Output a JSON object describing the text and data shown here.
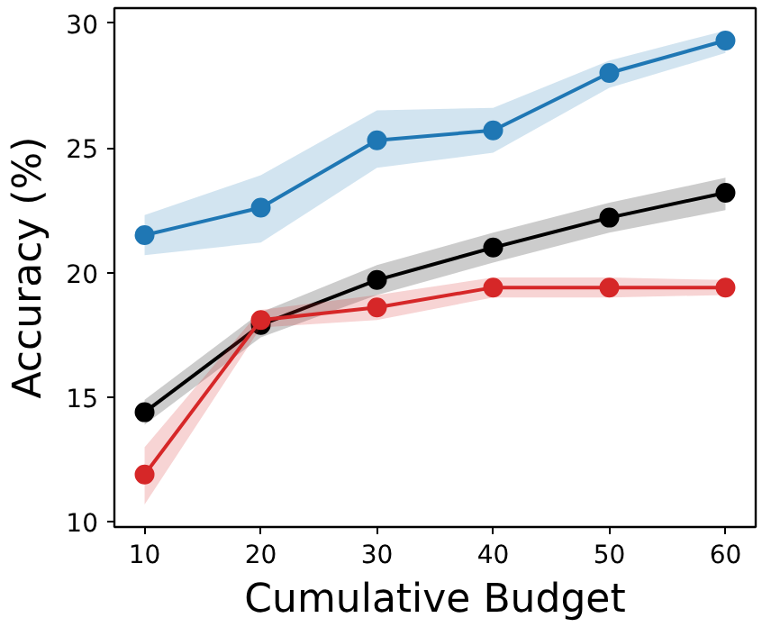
{
  "chart_data": {
    "type": "line",
    "xlabel": "Cumulative Budget",
    "ylabel": "Accuracy (%)",
    "x": [
      10,
      20,
      30,
      40,
      50,
      60
    ],
    "xlim": [
      7.4,
      62.6
    ],
    "ylim": [
      9.8,
      30.6
    ],
    "xticks": [
      10,
      20,
      30,
      40,
      50,
      60
    ],
    "yticks": [
      10,
      15,
      20,
      25,
      30
    ],
    "grid": false,
    "marker": "circle",
    "line_style": "solid",
    "series": [
      {
        "color": "#1f77b4",
        "values": [
          21.5,
          22.6,
          25.3,
          25.7,
          28.0,
          29.3
        ],
        "lower": [
          20.7,
          21.2,
          24.2,
          24.8,
          27.4,
          28.8
        ],
        "upper": [
          22.3,
          23.9,
          26.5,
          26.6,
          28.5,
          29.7
        ]
      },
      {
        "color": "#000000",
        "values": [
          14.4,
          17.9,
          19.7,
          21.0,
          22.2,
          23.2
        ],
        "lower": [
          13.9,
          17.4,
          19.1,
          20.4,
          21.6,
          22.5
        ],
        "upper": [
          14.9,
          18.4,
          20.3,
          21.6,
          22.8,
          23.8
        ]
      },
      {
        "color": "#d62728",
        "values": [
          11.9,
          18.1,
          18.6,
          19.4,
          19.4,
          19.4
        ],
        "lower": [
          10.7,
          17.8,
          18.1,
          19.0,
          19.0,
          19.1
        ],
        "upper": [
          13.0,
          18.5,
          19.1,
          19.8,
          19.8,
          19.7
        ]
      }
    ]
  }
}
